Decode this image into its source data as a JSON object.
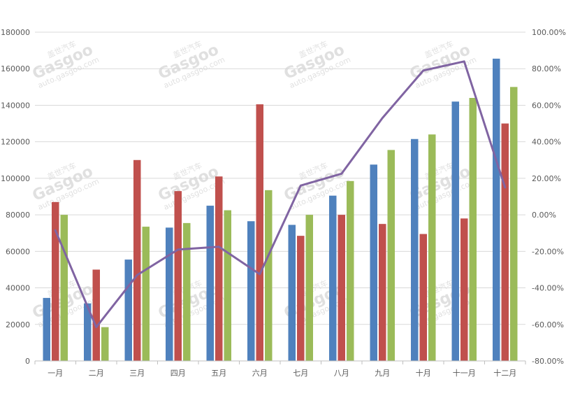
{
  "chart_data": {
    "type": "bar",
    "categories": [
      "一月",
      "二月",
      "三月",
      "四月",
      "五月",
      "六月",
      "七月",
      "八月",
      "九月",
      "十月",
      "十一月",
      "十二月"
    ],
    "series": [
      {
        "type": "bar",
        "axis": "left",
        "color": "#4f81bd",
        "values": [
          34500,
          31500,
          55500,
          73000,
          85000,
          76500,
          74500,
          90500,
          107500,
          121500,
          142000,
          165500
        ]
      },
      {
        "type": "bar",
        "axis": "left",
        "color": "#c0504d",
        "values": [
          87000,
          50000,
          110000,
          93000,
          101000,
          140500,
          68500,
          80000,
          75000,
          69500,
          78000,
          130000
        ]
      },
      {
        "type": "bar",
        "axis": "left",
        "color": "#9bbb59",
        "values": [
          80000,
          18500,
          73500,
          75500,
          82500,
          93500,
          80000,
          98500,
          115500,
          124000,
          144000,
          150000
        ]
      },
      {
        "type": "line",
        "axis": "right",
        "color": "#8064a2",
        "values": [
          -8.5,
          -61.5,
          -33.0,
          -19.0,
          -17.5,
          -32.5,
          16.0,
          22.5,
          53.0,
          79.0,
          84.0,
          15.0
        ]
      }
    ],
    "y_left": {
      "min": 0,
      "max": 180000,
      "step": 20000,
      "tick_labels": [
        "0",
        "20000",
        "40000",
        "60000",
        "80000",
        "100000",
        "120000",
        "140000",
        "160000",
        "180000"
      ]
    },
    "y_right": {
      "min": -80,
      "max": 100,
      "step": 20,
      "tick_labels": [
        "-80.00%",
        "-60.00%",
        "-40.00%",
        "-20.00%",
        "0.00%",
        "20.00%",
        "40.00%",
        "60.00%",
        "80.00%",
        "100.00%"
      ]
    },
    "grid": true,
    "legend": "none"
  },
  "watermark": {
    "brand": "Gasgoo",
    "chinese": "盖世汽车",
    "url": "auto.gasgoo.com"
  }
}
